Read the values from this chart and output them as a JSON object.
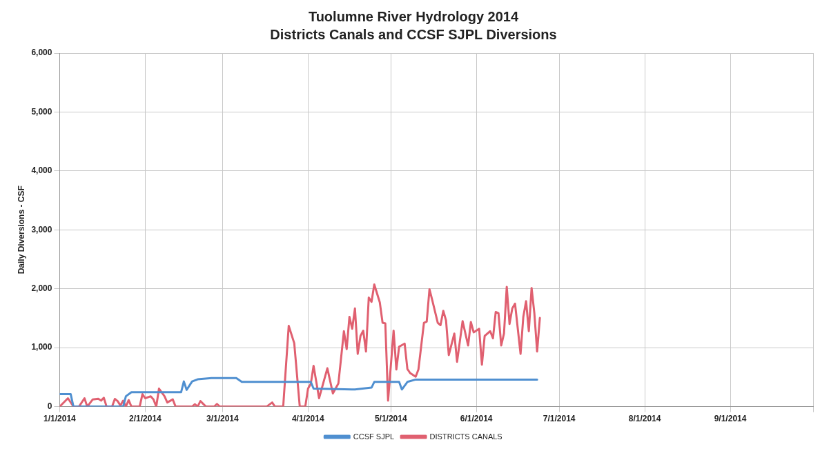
{
  "chart_data": {
    "type": "line",
    "title": "Tuolumne River Hydrology 2014",
    "subtitle": "Districts Canals and CCSF SJPL Diversions",
    "ylabel": "Daily Diversions - CSF",
    "xlim": [
      "2014-01-01",
      "2014-10-01"
    ],
    "xticks": [
      {
        "value": "2014-01-01",
        "label": "1/1/2014"
      },
      {
        "value": "2014-02-01",
        "label": "2/1/2014"
      },
      {
        "value": "2014-03-01",
        "label": "3/1/2014"
      },
      {
        "value": "2014-04-01",
        "label": "4/1/2014"
      },
      {
        "value": "2014-05-01",
        "label": "5/1/2014"
      },
      {
        "value": "2014-06-01",
        "label": "6/1/2014"
      },
      {
        "value": "2014-07-01",
        "label": "7/1/2014"
      },
      {
        "value": "2014-08-01",
        "label": "8/1/2014"
      },
      {
        "value": "2014-09-01",
        "label": "9/1/2014"
      },
      {
        "value": "2014-10-01",
        "label": null
      }
    ],
    "ylim": [
      0,
      6000
    ],
    "yticks": [
      0,
      {
        "value": 1000,
        "label": "1,000"
      },
      {
        "value": 2000,
        "label": "2,000"
      },
      {
        "value": 3000,
        "label": "3,000"
      },
      {
        "value": 4000,
        "label": "4,000"
      },
      {
        "value": 5000,
        "label": "5,000"
      },
      {
        "value": 6000,
        "label": "6,000"
      }
    ],
    "grid": true,
    "legend": "bottom",
    "marker": "none",
    "line_style": "solid",
    "series": [
      {
        "name": "CCSF SJPL",
        "color": "#4f8fd0",
        "x": [
          "2014-01-01",
          "2014-01-05",
          "2014-01-06",
          "2014-01-24",
          "2014-01-25",
          "2014-01-27",
          "2014-02-14",
          "2014-02-15",
          "2014-02-16",
          "2014-02-18",
          "2014-02-20",
          "2014-02-25",
          "2014-03-06",
          "2014-03-08",
          "2014-04-02",
          "2014-04-03",
          "2014-04-18",
          "2014-04-24",
          "2014-04-25",
          "2014-05-04",
          "2014-05-05",
          "2014-05-07",
          "2014-05-10",
          "2014-06-23"
        ],
        "values": [
          211,
          211,
          0,
          0,
          175,
          244,
          244,
          427,
          284,
          427,
          463,
          484,
          484,
          419,
          419,
          305,
          290,
          322,
          419,
          419,
          290,
          419,
          459,
          459
        ]
      },
      {
        "name": "DISTRICTS CANALS",
        "color": "#e06070",
        "x": [
          "2014-01-01",
          "2014-01-04",
          "2014-01-06",
          "2014-01-08",
          "2014-01-10",
          "2014-01-11",
          "2014-01-13",
          "2014-01-15",
          "2014-01-16",
          "2014-01-17",
          "2014-01-18",
          "2014-01-20",
          "2014-01-21",
          "2014-01-22",
          "2014-01-23",
          "2014-01-24",
          "2014-01-25",
          "2014-01-26",
          "2014-01-27",
          "2014-01-30",
          "2014-01-31",
          "2014-02-01",
          "2014-02-03",
          "2014-02-04",
          "2014-02-05",
          "2014-02-06",
          "2014-02-08",
          "2014-02-09",
          "2014-02-11",
          "2014-02-12",
          "2014-02-18",
          "2014-02-19",
          "2014-02-20",
          "2014-02-21",
          "2014-02-23",
          "2014-02-26",
          "2014-02-27",
          "2014-02-28",
          "2014-03-17",
          "2014-03-19",
          "2014-03-20",
          "2014-03-23",
          "2014-03-25",
          "2014-03-27",
          "2014-03-29",
          "2014-03-31",
          "2014-04-01",
          "2014-04-02",
          "2014-04-03",
          "2014-04-05",
          "2014-04-08",
          "2014-04-10",
          "2014-04-12",
          "2014-04-14",
          "2014-04-15",
          "2014-04-16",
          "2014-04-17",
          "2014-04-18",
          "2014-04-19",
          "2014-04-20",
          "2014-04-21",
          "2014-04-22",
          "2014-04-23",
          "2014-04-24",
          "2014-04-25",
          "2014-04-27",
          "2014-04-28",
          "2014-04-29",
          "2014-04-30",
          "2014-05-02",
          "2014-05-03",
          "2014-05-04",
          "2014-05-06",
          "2014-05-07",
          "2014-05-08",
          "2014-05-10",
          "2014-05-11",
          "2014-05-13",
          "2014-05-14",
          "2014-05-15",
          "2014-05-16",
          "2014-05-18",
          "2014-05-19",
          "2014-05-20",
          "2014-05-21",
          "2014-05-22",
          "2014-05-24",
          "2014-05-25",
          "2014-05-27",
          "2014-05-29",
          "2014-05-30",
          "2014-05-31",
          "2014-06-02",
          "2014-06-03",
          "2014-06-04",
          "2014-06-06",
          "2014-06-07",
          "2014-06-08",
          "2014-06-09",
          "2014-06-10",
          "2014-06-11",
          "2014-06-12",
          "2014-06-13",
          "2014-06-14",
          "2014-06-15",
          "2014-06-17",
          "2014-06-18",
          "2014-06-19",
          "2014-06-20",
          "2014-06-21",
          "2014-06-22",
          "2014-06-23",
          "2014-06-24"
        ],
        "values": [
          0,
          142,
          0,
          0,
          142,
          0,
          122,
          134,
          102,
          150,
          0,
          0,
          130,
          93,
          20,
          100,
          0,
          110,
          0,
          0,
          211,
          142,
          175,
          122,
          0,
          305,
          175,
          70,
          122,
          0,
          0,
          40,
          0,
          93,
          0,
          0,
          45,
          0,
          0,
          70,
          0,
          0,
          1370,
          1077,
          0,
          0,
          305,
          386,
          691,
          142,
          650,
          224,
          394,
          1280,
          976,
          1524,
          1321,
          1667,
          895,
          1199,
          1289,
          935,
          1850,
          1777,
          2073,
          1768,
          1423,
          1411,
          102,
          1289,
          630,
          1016,
          1069,
          638,
          569,
          508,
          630,
          1423,
          1443,
          1992,
          1809,
          1423,
          1382,
          1626,
          1463,
          874,
          1240,
          760,
          1451,
          1037,
          1435,
          1260,
          1321,
          711,
          1199,
          1280,
          1159,
          1606,
          1585,
          1037,
          1240,
          2033,
          1402,
          1667,
          1748,
          895,
          1524,
          1789,
          1280,
          2012,
          1585,
          935,
          1504
        ]
      }
    ]
  }
}
